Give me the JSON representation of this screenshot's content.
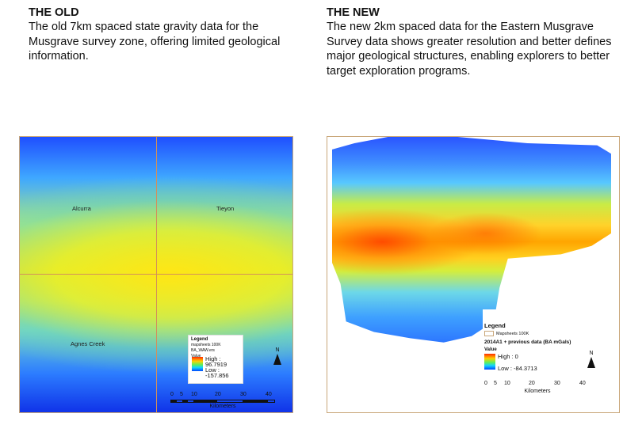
{
  "left": {
    "heading": "THE OLD",
    "description": "The old 7km spaced state gravity data for the Musgrave survey zone, offering limited geological information.",
    "map": {
      "sheet_labels": [
        "Alcurra",
        "Tieyon",
        "Agnes Creek"
      ],
      "legend": {
        "title": "Legend",
        "sheet_entry": "mapsheets 100K",
        "layer": "BA_WAW.ers",
        "value_label": "Value",
        "high": "High : 96.7919",
        "low": "Low : -157.856"
      },
      "north": "N",
      "scale": {
        "ticks": [
          "0",
          "5",
          "10",
          "20",
          "30",
          "40"
        ],
        "unit": "Kilometers"
      }
    }
  },
  "right": {
    "heading": "THE NEW",
    "description": "The new 2km spaced data for the Eastern Musgrave Survey data shows greater resolution and better defines major geological structures, enabling explorers to better target exploration programs.",
    "map": {
      "legend": {
        "title": "Legend",
        "sheet_entry": "Mapsheets 100K",
        "layer": "2014A1 + previous data (BA mGals)",
        "value_label": "Value",
        "high": "High : 0",
        "low": "Low : -84.3713"
      },
      "north": "N",
      "scale": {
        "ticks": [
          "0",
          "5",
          "10",
          "20",
          "30",
          "40"
        ],
        "unit": "Kilometers"
      }
    }
  }
}
